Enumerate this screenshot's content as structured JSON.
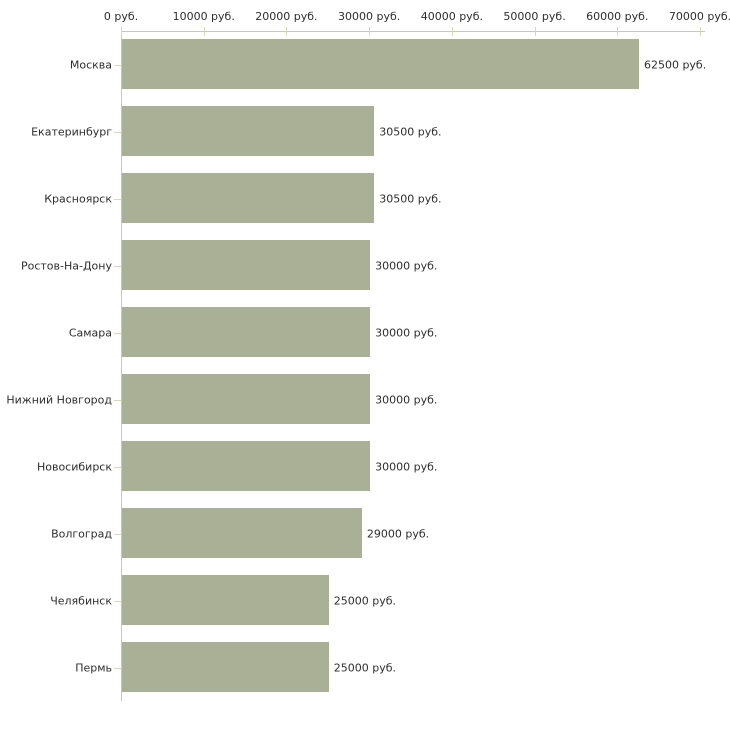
{
  "chart_data": {
    "type": "bar",
    "orientation": "horizontal",
    "title": "",
    "xlabel": "",
    "ylabel": "",
    "xlim": [
      0,
      70000
    ],
    "grid": false,
    "legend": "none",
    "bar_color": "#a9b096",
    "axis_line_color": "#c6c6c6",
    "tick_mark_color": "#d9d9b0",
    "text_color": "#2e2e2e",
    "background_color": "#ffffff",
    "x_ticks": [
      {
        "value": 0,
        "label": "0 руб."
      },
      {
        "value": 10000,
        "label": "10000 руб."
      },
      {
        "value": 20000,
        "label": "20000 руб."
      },
      {
        "value": 30000,
        "label": "30000 руб."
      },
      {
        "value": 40000,
        "label": "40000 руб."
      },
      {
        "value": 50000,
        "label": "50000 руб."
      },
      {
        "value": 60000,
        "label": "60000 руб."
      },
      {
        "value": 70000,
        "label": "70000 руб."
      }
    ],
    "categories": [
      "Москва",
      "Екатеринбург",
      "Красноярск",
      "Ростов-На-Дону",
      "Самара",
      "Нижний Новгород",
      "Новосибирск",
      "Волгоград",
      "Челябинск",
      "Пермь"
    ],
    "values": [
      62500,
      30500,
      30500,
      30000,
      30000,
      30000,
      30000,
      29000,
      25000,
      25000
    ],
    "value_labels": [
      "62500 руб.",
      "30500 руб.",
      "30500 руб.",
      "30000 руб.",
      "30000 руб.",
      "30000 руб.",
      "30000 руб.",
      "29000 руб.",
      "25000 руб.",
      "25000 руб."
    ]
  }
}
